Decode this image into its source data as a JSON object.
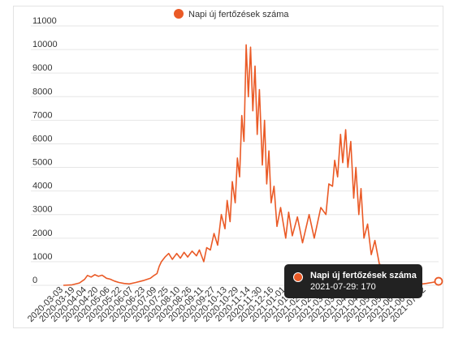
{
  "chart_data": {
    "type": "line",
    "legend": {
      "label": "Napi új fertőzések száma",
      "placement": "top-center"
    },
    "colors": {
      "series": "#ea5a26",
      "grid": "#e6e6e6",
      "tooltip_bg": "#222222"
    },
    "ylim": [
      0,
      11000
    ],
    "yticks": [
      0,
      1000,
      2000,
      3000,
      4000,
      5000,
      6000,
      7000,
      8000,
      9000,
      10000,
      11000
    ],
    "xlim": [
      "2020-03-03",
      "2021-07-29"
    ],
    "xtick_labels": [
      "2020-03-03",
      "2020-03-19",
      "2020-04-04",
      "2020-04-20",
      "2020-05-06",
      "2020-05-22",
      "2020-06-07",
      "2020-06-23",
      "2020-07-09",
      "2020-07-25",
      "2020-08-10",
      "2020-08-26",
      "2020-09-11",
      "2020-09-27",
      "2020-10-13",
      "2020-10-29",
      "2020-11-14",
      "2020-11-30",
      "2020-12-16",
      "2021-01-01",
      "2021-01-17",
      "2021-02-02",
      "2021-02-18",
      "2021-03-06",
      "2021-03-22",
      "2021-04-07",
      "2021-04-23",
      "2021-05-09",
      "2021-05-25",
      "2021-06-10",
      "2021-06-26",
      "2021-07-12"
    ],
    "grid": true,
    "series": [
      {
        "name": "Napi új fertőzések száma",
        "points": [
          [
            "2020-03-03",
            0
          ],
          [
            "2020-03-15",
            20
          ],
          [
            "2020-03-25",
            100
          ],
          [
            "2020-04-01",
            250
          ],
          [
            "2020-04-05",
            420
          ],
          [
            "2020-04-10",
            350
          ],
          [
            "2020-04-15",
            450
          ],
          [
            "2020-04-20",
            380
          ],
          [
            "2020-04-25",
            430
          ],
          [
            "2020-05-01",
            300
          ],
          [
            "2020-05-06",
            260
          ],
          [
            "2020-05-12",
            180
          ],
          [
            "2020-05-18",
            120
          ],
          [
            "2020-05-25",
            80
          ],
          [
            "2020-06-01",
            60
          ],
          [
            "2020-06-10",
            120
          ],
          [
            "2020-06-20",
            200
          ],
          [
            "2020-06-30",
            300
          ],
          [
            "2020-07-05",
            420
          ],
          [
            "2020-07-09",
            500
          ],
          [
            "2020-07-12",
            800
          ],
          [
            "2020-07-15",
            1000
          ],
          [
            "2020-07-20",
            1200
          ],
          [
            "2020-07-25",
            1350
          ],
          [
            "2020-07-30",
            1100
          ],
          [
            "2020-08-05",
            1350
          ],
          [
            "2020-08-10",
            1150
          ],
          [
            "2020-08-15",
            1400
          ],
          [
            "2020-08-20",
            1200
          ],
          [
            "2020-08-26",
            1450
          ],
          [
            "2020-09-01",
            1250
          ],
          [
            "2020-09-05",
            1500
          ],
          [
            "2020-09-11",
            1000
          ],
          [
            "2020-09-15",
            1600
          ],
          [
            "2020-09-20",
            1500
          ],
          [
            "2020-09-25",
            2200
          ],
          [
            "2020-09-30",
            1700
          ],
          [
            "2020-10-05",
            3000
          ],
          [
            "2020-10-10",
            2400
          ],
          [
            "2020-10-13",
            3600
          ],
          [
            "2020-10-17",
            2700
          ],
          [
            "2020-10-20",
            4400
          ],
          [
            "2020-10-24",
            3500
          ],
          [
            "2020-10-27",
            5400
          ],
          [
            "2020-10-30",
            4600
          ],
          [
            "2020-11-02",
            7200
          ],
          [
            "2020-11-05",
            6100
          ],
          [
            "2020-11-08",
            10200
          ],
          [
            "2020-11-11",
            8000
          ],
          [
            "2020-11-14",
            10100
          ],
          [
            "2020-11-17",
            7400
          ],
          [
            "2020-11-20",
            9300
          ],
          [
            "2020-11-23",
            6400
          ],
          [
            "2020-11-26",
            8300
          ],
          [
            "2020-11-30",
            5100
          ],
          [
            "2020-12-03",
            7000
          ],
          [
            "2020-12-06",
            4300
          ],
          [
            "2020-12-09",
            5700
          ],
          [
            "2020-12-12",
            3500
          ],
          [
            "2020-12-16",
            4200
          ],
          [
            "2020-12-20",
            2500
          ],
          [
            "2020-12-25",
            3300
          ],
          [
            "2021-01-01",
            2000
          ],
          [
            "2021-01-05",
            3100
          ],
          [
            "2021-01-10",
            2100
          ],
          [
            "2021-01-17",
            2900
          ],
          [
            "2021-01-24",
            1800
          ],
          [
            "2021-02-02",
            3000
          ],
          [
            "2021-02-09",
            2000
          ],
          [
            "2021-02-18",
            3300
          ],
          [
            "2021-02-25",
            3000
          ],
          [
            "2021-03-01",
            4300
          ],
          [
            "2021-03-06",
            4200
          ],
          [
            "2021-03-09",
            5300
          ],
          [
            "2021-03-13",
            4600
          ],
          [
            "2021-03-17",
            6400
          ],
          [
            "2021-03-20",
            5200
          ],
          [
            "2021-03-24",
            6600
          ],
          [
            "2021-03-27",
            5000
          ],
          [
            "2021-03-31",
            6100
          ],
          [
            "2021-04-04",
            3700
          ],
          [
            "2021-04-07",
            5000
          ],
          [
            "2021-04-11",
            3000
          ],
          [
            "2021-04-14",
            4100
          ],
          [
            "2021-04-18",
            2000
          ],
          [
            "2021-04-23",
            2600
          ],
          [
            "2021-04-28",
            1300
          ],
          [
            "2021-05-03",
            1900
          ],
          [
            "2021-05-09",
            900
          ],
          [
            "2021-05-15",
            800
          ],
          [
            "2021-05-25",
            500
          ],
          [
            "2021-06-01",
            250
          ],
          [
            "2021-06-10",
            100
          ],
          [
            "2021-06-20",
            50
          ],
          [
            "2021-06-30",
            30
          ],
          [
            "2021-07-12",
            80
          ],
          [
            "2021-07-20",
            120
          ],
          [
            "2021-07-29",
            170
          ]
        ]
      }
    ],
    "highlight": {
      "date": "2021-07-29",
      "value": 170
    }
  },
  "tooltip": {
    "title": "Napi új fertőzések száma",
    "value_text": "2021-07-29: 170"
  }
}
